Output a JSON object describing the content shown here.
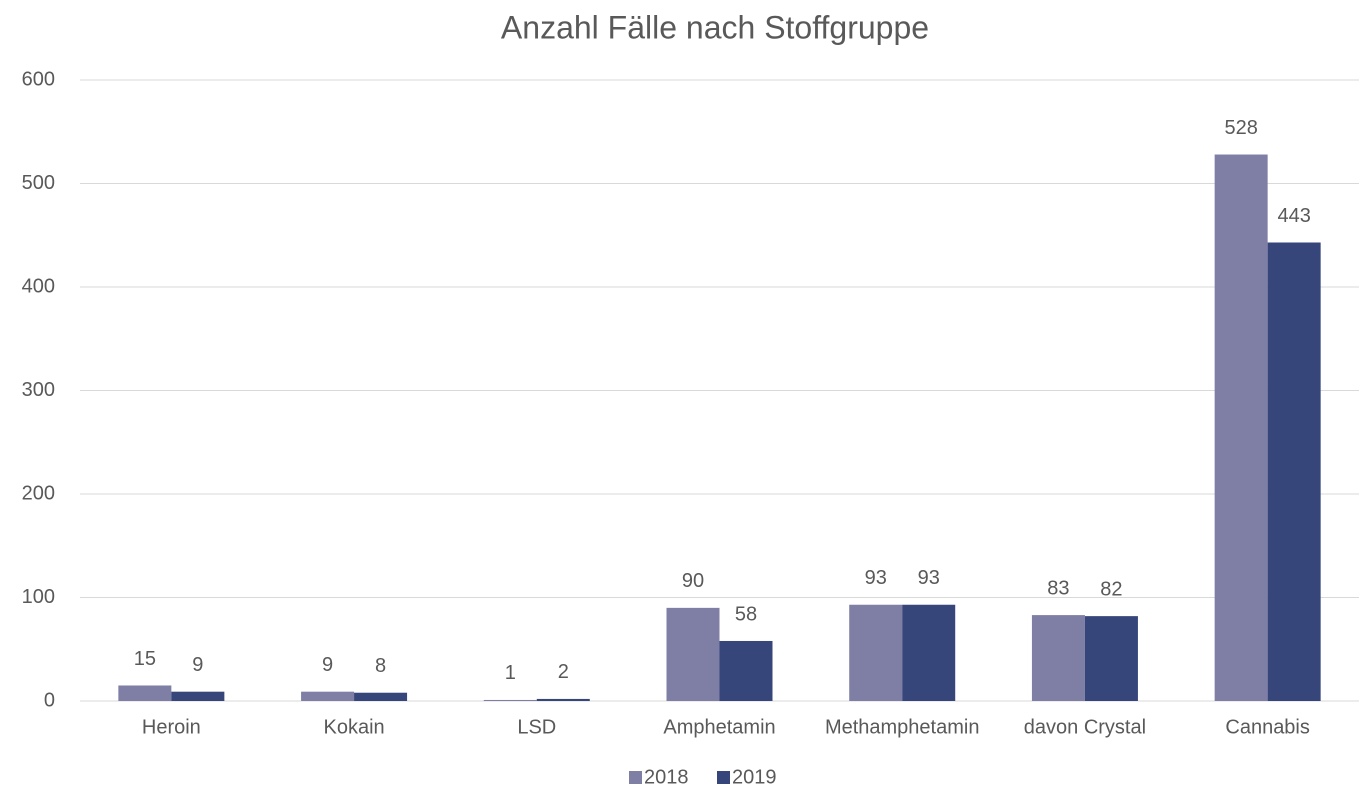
{
  "chart_data": {
    "type": "bar",
    "title": "Anzahl Fälle nach Stoffgruppe",
    "categories": [
      "Heroin",
      "Kokain",
      "LSD",
      "Amphetamin",
      "Methamphetamin",
      "davon Crystal",
      "Cannabis"
    ],
    "series": [
      {
        "name": "2018",
        "color": "#7f7fa6",
        "values": [
          15,
          9,
          1,
          90,
          93,
          83,
          528
        ]
      },
      {
        "name": "2019",
        "color": "#36457a",
        "values": [
          9,
          8,
          2,
          58,
          93,
          82,
          443
        ]
      }
    ],
    "ylim": [
      0,
      600
    ],
    "yticks": [
      0,
      100,
      200,
      300,
      400,
      500,
      600
    ],
    "grid": true,
    "legend": "bottom"
  }
}
